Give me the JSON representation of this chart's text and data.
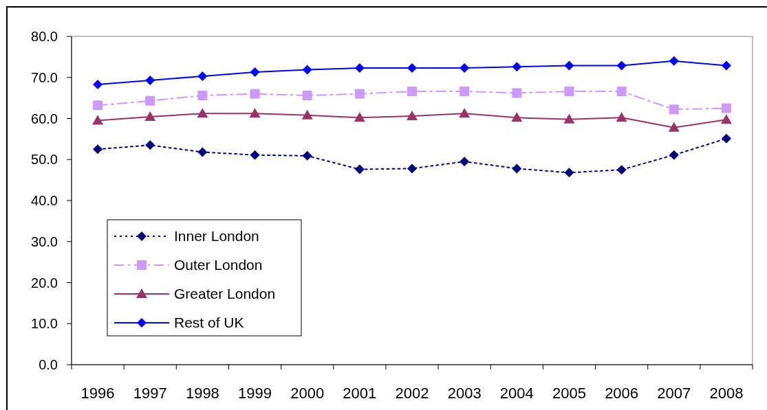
{
  "chart_data": {
    "type": "line",
    "categories": [
      "1996",
      "1997",
      "1998",
      "1999",
      "2000",
      "2001",
      "2002",
      "2003",
      "2004",
      "2005",
      "2006",
      "2007",
      "2008"
    ],
    "ylim": [
      0,
      80
    ],
    "yticks": [
      {
        "value": 0,
        "label": "0.0"
      },
      {
        "value": 10,
        "label": "10.0"
      },
      {
        "value": 20,
        "label": "20.0"
      },
      {
        "value": 30,
        "label": "30.0"
      },
      {
        "value": 40,
        "label": "40.0"
      },
      {
        "value": 50,
        "label": "50.0"
      },
      {
        "value": 60,
        "label": "60.0"
      },
      {
        "value": 70,
        "label": "70.0"
      },
      {
        "value": 80,
        "label": "80.0"
      }
    ],
    "legend": "bottom left",
    "grid": false,
    "series": [
      {
        "name": "Inner London",
        "color": "#000080",
        "marker": "diamond",
        "line_style": "dotted",
        "values": [
          52.5,
          53.5,
          51.8,
          51.1,
          50.9,
          47.6,
          47.8,
          49.5,
          47.8,
          46.8,
          47.5,
          51.1,
          55.1
        ]
      },
      {
        "name": "Outer London",
        "color": "#cc99ff",
        "marker": "square",
        "line_style": "dashed",
        "values": [
          63.2,
          64.3,
          65.6,
          66.0,
          65.6,
          66.0,
          66.6,
          66.6,
          66.2,
          66.6,
          66.6,
          62.2,
          62.5
        ]
      },
      {
        "name": "Greater London",
        "color": "#993366",
        "marker": "triangle",
        "line_style": "solid",
        "values": [
          59.5,
          60.4,
          61.2,
          61.2,
          60.8,
          60.2,
          60.6,
          61.2,
          60.2,
          59.8,
          60.2,
          57.8,
          59.7
        ]
      },
      {
        "name": "Rest of UK",
        "color": "#0000ff",
        "marker": "diamond",
        "line_style": "solid",
        "values": [
          68.3,
          69.3,
          70.3,
          71.3,
          71.9,
          72.3,
          72.3,
          72.3,
          72.6,
          72.9,
          72.9,
          74.0,
          72.9
        ]
      }
    ]
  }
}
